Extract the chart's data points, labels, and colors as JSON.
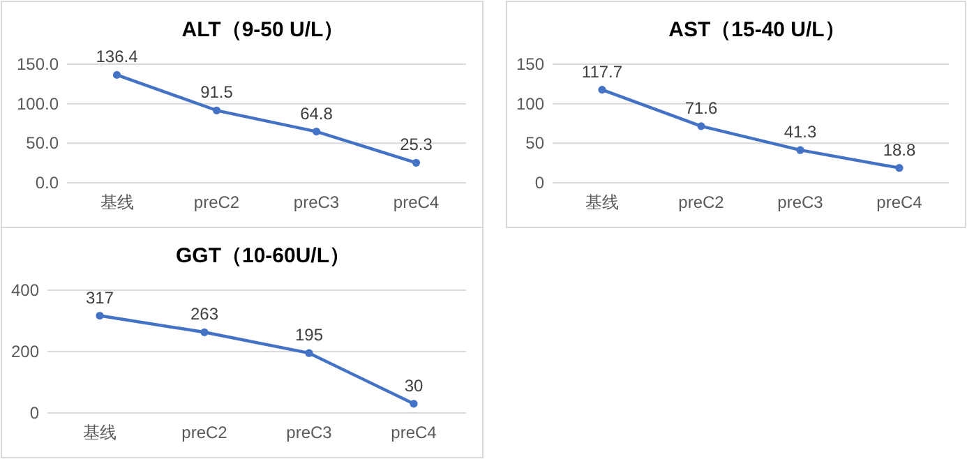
{
  "chart_data": [
    {
      "type": "line",
      "title": "ALT（9-50 U/L）",
      "categories": [
        "基线",
        "preC2",
        "preC3",
        "preC4"
      ],
      "series": [
        {
          "color": "#4472c4",
          "values": [
            136.4,
            91.5,
            64.8,
            25.3
          ]
        }
      ],
      "ylim": [
        0,
        150
      ],
      "yticks": [
        {
          "value": 0,
          "label": "0.0"
        },
        {
          "value": 50,
          "label": "50.0"
        },
        {
          "value": 100,
          "label": "100.0"
        },
        {
          "value": 150,
          "label": "150.0"
        }
      ],
      "grid": "y",
      "marker": "circle",
      "line_style": "solid",
      "data_labels": true
    },
    {
      "type": "line",
      "title": "AST（15-40 U/L）",
      "categories": [
        "基线",
        "preC2",
        "preC3",
        "preC4"
      ],
      "series": [
        {
          "color": "#4472c4",
          "values": [
            117.7,
            71.6,
            41.3,
            18.8
          ]
        }
      ],
      "ylim": [
        0,
        150
      ],
      "yticks": [
        0,
        50,
        100,
        150
      ],
      "grid": "y",
      "marker": "circle",
      "line_style": "solid",
      "data_labels": true
    },
    {
      "type": "line",
      "title": "GGT（10-60U/L）",
      "categories": [
        "基线",
        "preC2",
        "preC3",
        "preC4"
      ],
      "series": [
        {
          "color": "#4472c4",
          "values": [
            317,
            263,
            195,
            30
          ]
        }
      ],
      "ylim": [
        0,
        400
      ],
      "yticks": [
        0,
        200,
        400
      ],
      "grid": "y",
      "marker": "circle",
      "line_style": "solid",
      "data_labels": true
    }
  ]
}
